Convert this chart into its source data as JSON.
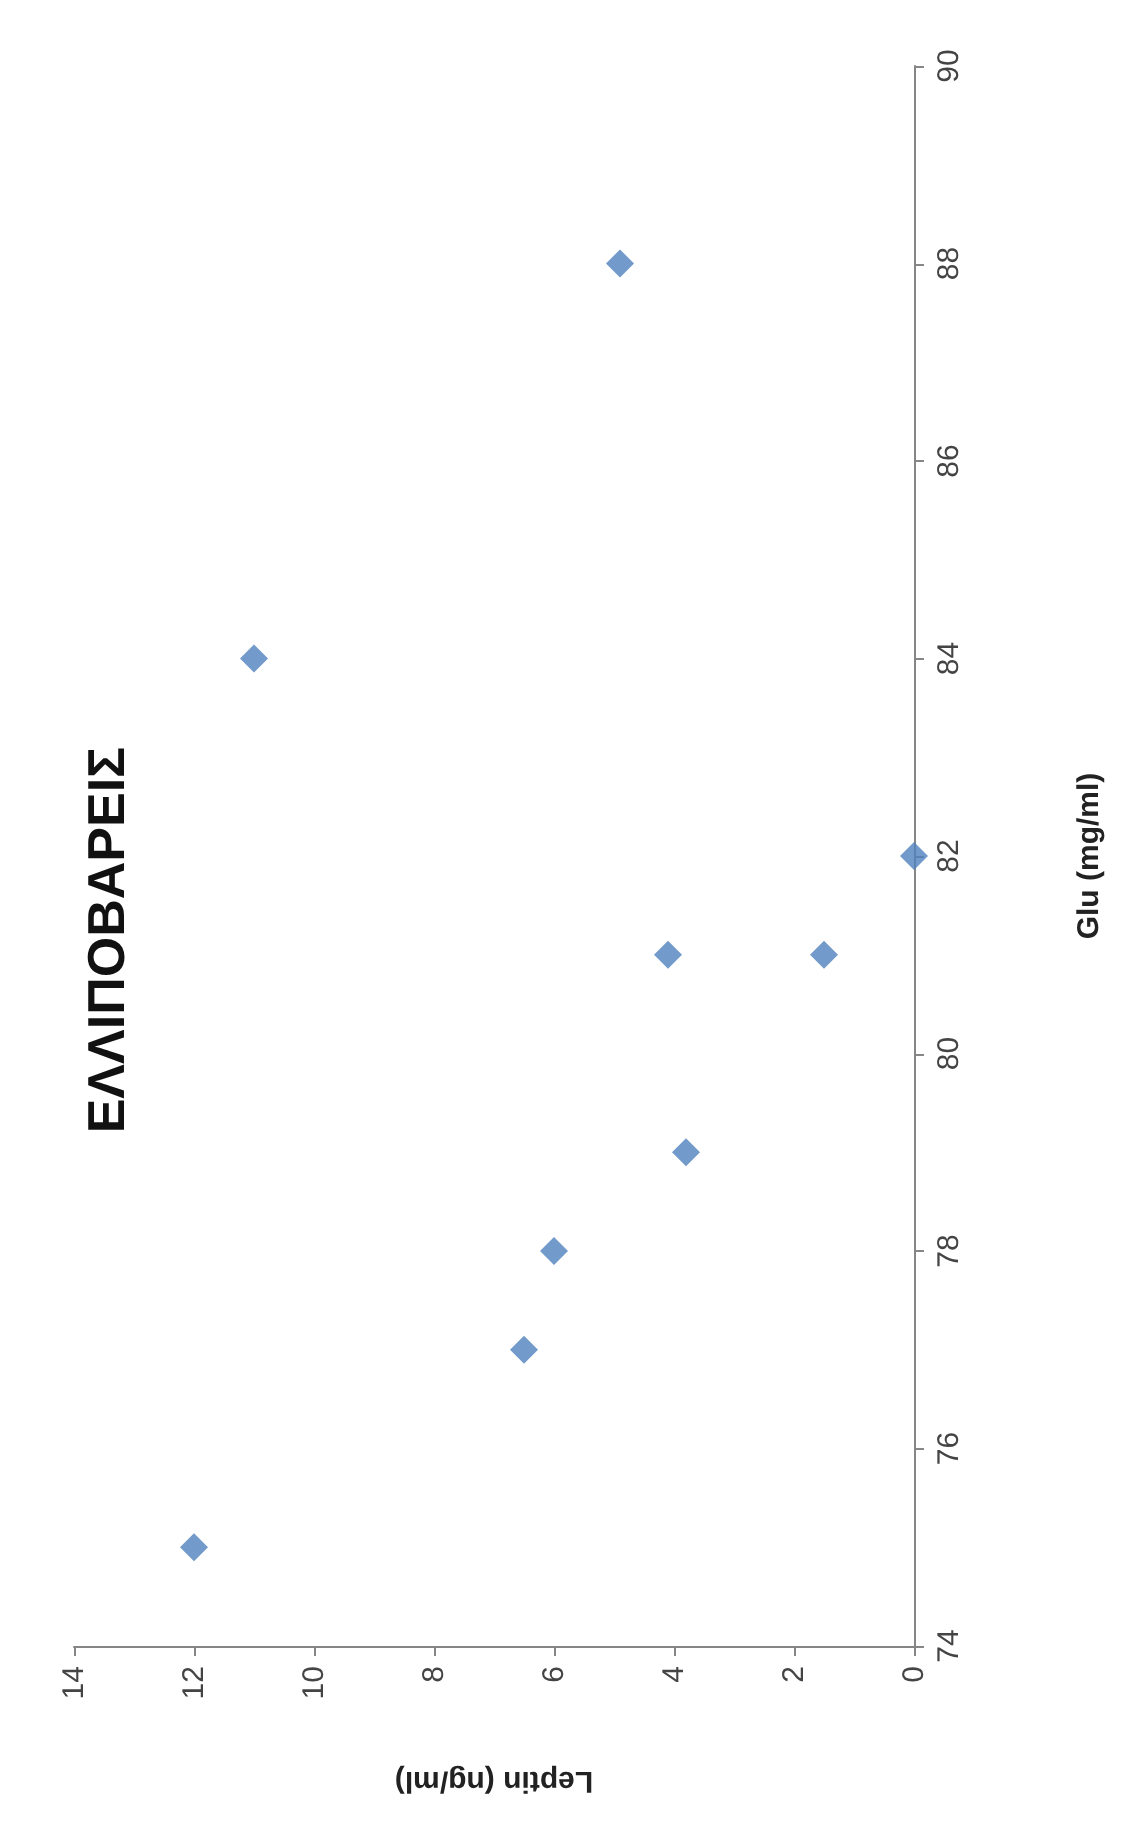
{
  "chart_data": {
    "type": "scatter",
    "title": "ΕΛΛΙΠΟΒΑΡΕΙΣ",
    "xlabel": "Leptin (ng/ml)",
    "ylabel": "Glu (mg/ml)",
    "x": [
      12,
      6.5,
      6,
      3.8,
      4.1,
      1.5,
      0,
      11,
      4.9
    ],
    "series": [
      {
        "color": "#4f81bd",
        "values": [
          75,
          77,
          78,
          79,
          81,
          81,
          82,
          84,
          88
        ]
      }
    ],
    "xlim": [
      14,
      0
    ],
    "xticks": [
      14,
      12,
      10,
      8,
      6,
      4,
      2,
      0
    ],
    "ylim": [
      74,
      90
    ],
    "yticks": [
      74,
      76,
      78,
      80,
      82,
      84,
      86,
      88,
      90
    ],
    "grid": false,
    "marker": "diamond"
  }
}
